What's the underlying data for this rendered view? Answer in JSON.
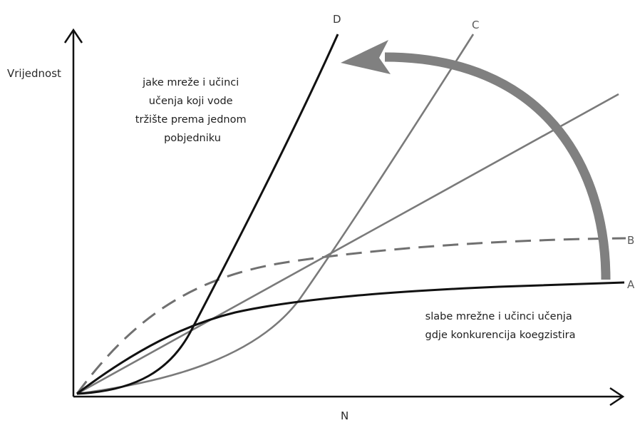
{
  "axes": {
    "y_label": "Vrijednost",
    "x_label": "N"
  },
  "curves": [
    {
      "id": "A",
      "label": "A",
      "style": "solid",
      "color": "#111111"
    },
    {
      "id": "B",
      "label": "B",
      "style": "dashed",
      "color": "#707070"
    },
    {
      "id": "C",
      "label": "C",
      "style": "solid",
      "color": "#7a7a7a"
    },
    {
      "id": "D",
      "label": "D",
      "style": "solid",
      "color": "#111111"
    }
  ],
  "annotations": {
    "top_note": [
      "jake mreže i učinci",
      "učenja koji vode",
      "tržište prema jednom",
      "pobjedniku"
    ],
    "bottom_note": [
      "slabe mrežne i učinci učenja",
      "gdje konkurencija koegzistira"
    ]
  },
  "arrow": {
    "direction": "counter-clockwise",
    "from": "A",
    "to": "D",
    "color": "#808080"
  }
}
